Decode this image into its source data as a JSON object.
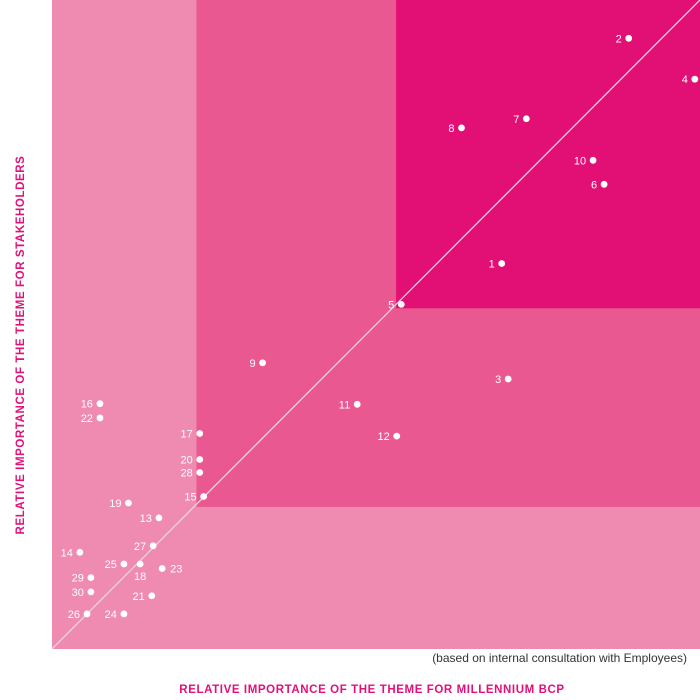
{
  "chart_data": {
    "type": "scatter",
    "xlabel": "RELATIVE IMPORTANCE OF THE THEME FOR MILLENNIUM BCP",
    "ylabel": "RELATIVE IMPORTANCE OF THE THEME FOR STAKEHOLDERS",
    "note": "(based on internal consultation with Employees)",
    "xlim": [
      0,
      100
    ],
    "ylim": [
      0,
      100
    ],
    "zones": [
      {
        "name": "low",
        "x_from": 0,
        "y_from": 0,
        "color": "#ef8ab0"
      },
      {
        "name": "medium",
        "x_from": 22.3,
        "y_from": 21.9,
        "color": "#ea5891"
      },
      {
        "name": "high",
        "x_from": 53.1,
        "y_from": 52.5,
        "color": "#e20f75"
      }
    ],
    "diagonal": true,
    "points": [
      {
        "label": "1",
        "x": 69.4,
        "y": 59.4,
        "label_side": "left"
      },
      {
        "label": "2",
        "x": 89.0,
        "y": 94.1,
        "label_side": "left"
      },
      {
        "label": "3",
        "x": 70.4,
        "y": 41.6,
        "label_side": "left"
      },
      {
        "label": "4",
        "x": 99.2,
        "y": 87.8,
        "label_side": "left"
      },
      {
        "label": "5",
        "x": 53.9,
        "y": 53.1,
        "label_side": "left"
      },
      {
        "label": "6",
        "x": 85.2,
        "y": 71.6,
        "label_side": "left"
      },
      {
        "label": "7",
        "x": 73.2,
        "y": 81.7,
        "label_side": "left"
      },
      {
        "label": "8",
        "x": 63.2,
        "y": 80.3,
        "label_side": "left"
      },
      {
        "label": "9",
        "x": 32.5,
        "y": 44.1,
        "label_side": "left"
      },
      {
        "label": "10",
        "x": 83.5,
        "y": 75.3,
        "label_side": "left"
      },
      {
        "label": "11",
        "x": 47.1,
        "y": 37.7,
        "label_side": "left"
      },
      {
        "label": "12",
        "x": 53.2,
        "y": 32.8,
        "label_side": "left"
      },
      {
        "label": "13",
        "x": 16.5,
        "y": 20.2,
        "label_side": "left"
      },
      {
        "label": "14",
        "x": 4.3,
        "y": 14.9,
        "label_side": "left"
      },
      {
        "label": "15",
        "x": 23.4,
        "y": 23.5,
        "label_side": "left"
      },
      {
        "label": "16",
        "x": 7.4,
        "y": 37.8,
        "label_side": "left"
      },
      {
        "label": "17",
        "x": 22.8,
        "y": 33.2,
        "label_side": "left"
      },
      {
        "label": "18",
        "x": 13.6,
        "y": 13.1,
        "label_side": "below"
      },
      {
        "label": "19",
        "x": 11.8,
        "y": 22.5,
        "label_side": "left"
      },
      {
        "label": "20",
        "x": 22.8,
        "y": 29.2,
        "label_side": "left"
      },
      {
        "label": "21",
        "x": 15.4,
        "y": 8.2,
        "label_side": "left"
      },
      {
        "label": "22",
        "x": 7.4,
        "y": 35.6,
        "label_side": "left"
      },
      {
        "label": "23",
        "x": 17.0,
        "y": 12.4,
        "label_side": "right"
      },
      {
        "label": "24",
        "x": 11.1,
        "y": 5.4,
        "label_side": "left"
      },
      {
        "label": "25",
        "x": 11.1,
        "y": 13.1,
        "label_side": "left"
      },
      {
        "label": "26",
        "x": 5.4,
        "y": 5.4,
        "label_side": "left"
      },
      {
        "label": "27",
        "x": 15.6,
        "y": 15.9,
        "label_side": "left"
      },
      {
        "label": "28",
        "x": 22.8,
        "y": 27.2,
        "label_side": "left"
      },
      {
        "label": "29",
        "x": 6.0,
        "y": 11.0,
        "label_side": "left"
      },
      {
        "label": "30",
        "x": 6.0,
        "y": 8.8,
        "label_side": "left"
      }
    ]
  }
}
